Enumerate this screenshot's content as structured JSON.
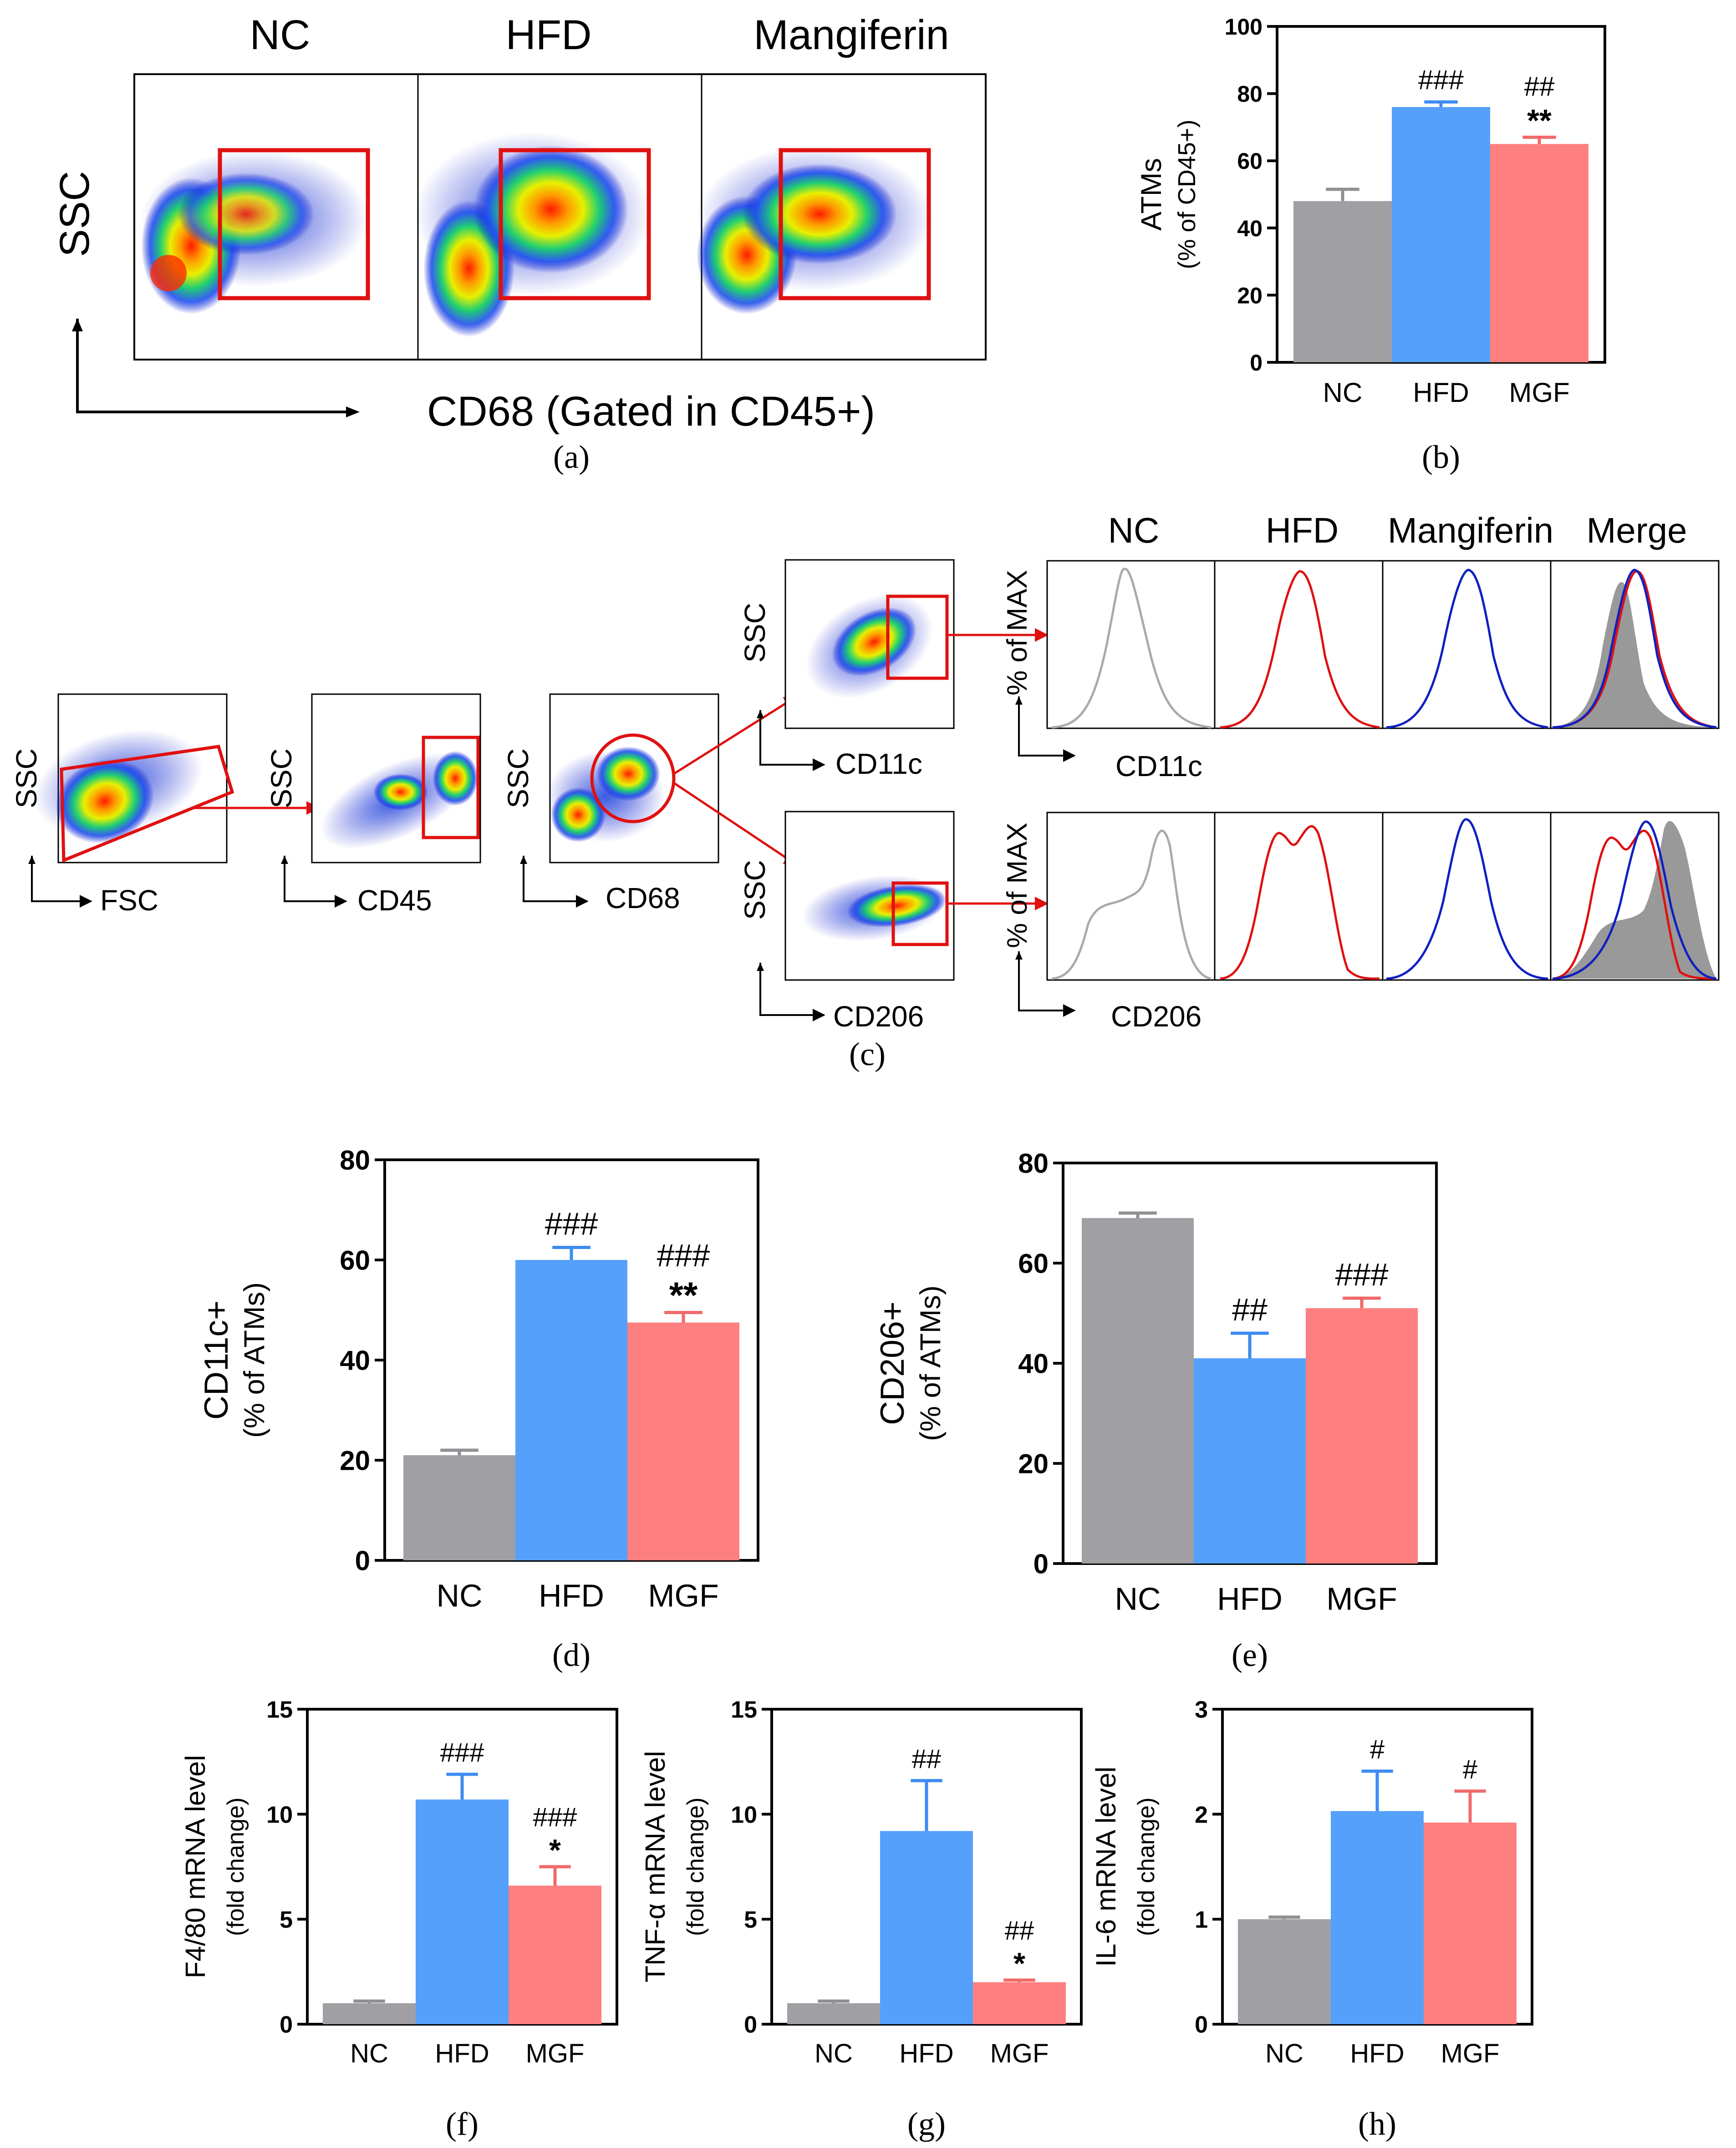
{
  "colors": {
    "nc": "#a0a0a4",
    "hfd": "#55a0fb",
    "mgf": "#fe7f7f",
    "gate": "#e01010",
    "nc_line": "#aaaaaa",
    "hfd_line": "#e01010",
    "mgf_line": "#1020c0"
  },
  "panel_a": {
    "caption": "(a)",
    "columns": [
      "NC",
      "HFD",
      "Mangiferin"
    ],
    "y_axis": "SSC",
    "x_axis": "CD68 (Gated in CD45+)"
  },
  "panel_c": {
    "caption": "(c)",
    "gating": [
      {
        "y": "SSC",
        "x": "FSC"
      },
      {
        "y": "SSC",
        "x": "CD45"
      },
      {
        "y": "SSC",
        "x": "CD68"
      }
    ],
    "sub_plots": [
      {
        "y": "SSC",
        "x": "CD11c"
      },
      {
        "y": "SSC",
        "x": "CD206"
      }
    ],
    "hist_columns": [
      "NC",
      "HFD",
      "Mangiferin",
      "Merge"
    ],
    "hist_rows": [
      {
        "y": "% of MAX",
        "x": "CD11c"
      },
      {
        "y": "% of MAX",
        "x": "CD206"
      }
    ]
  },
  "chart_data": [
    {
      "id": "b",
      "type": "bar",
      "caption": "(b)",
      "categories": [
        "NC",
        "HFD",
        "MGF"
      ],
      "values": [
        48,
        76,
        65
      ],
      "errors": [
        3.5,
        1.5,
        2
      ],
      "ylabel": [
        "ATMs",
        "(% of CD45+)"
      ],
      "ylim": [
        0,
        100
      ],
      "ticks": [
        0,
        20,
        40,
        60,
        80,
        100
      ],
      "annotations": [
        [
          ""
        ],
        [
          "###"
        ],
        [
          "##",
          "**"
        ]
      ]
    },
    {
      "id": "d",
      "type": "bar",
      "caption": "(d)",
      "categories": [
        "NC",
        "HFD",
        "MGF"
      ],
      "values": [
        21,
        60,
        47.5
      ],
      "errors": [
        1,
        2.5,
        2
      ],
      "ylabel": [
        "CD11c+",
        "(% of ATMs)"
      ],
      "ylim": [
        0,
        80
      ],
      "ticks": [
        0,
        20,
        40,
        60,
        80
      ],
      "annotations": [
        [
          ""
        ],
        [
          "###"
        ],
        [
          "###",
          "**"
        ]
      ]
    },
    {
      "id": "e",
      "type": "bar",
      "caption": "(e)",
      "categories": [
        "NC",
        "HFD",
        "MGF"
      ],
      "values": [
        69,
        41,
        51
      ],
      "errors": [
        1,
        5,
        2
      ],
      "ylabel": [
        "CD206+",
        "(% of ATMs)"
      ],
      "ylim": [
        0,
        80
      ],
      "ticks": [
        0,
        20,
        40,
        60,
        80
      ],
      "annotations": [
        [
          ""
        ],
        [
          "##"
        ],
        [
          "###"
        ]
      ]
    },
    {
      "id": "f",
      "type": "bar",
      "caption": "(f)",
      "categories": [
        "NC",
        "HFD",
        "MGF"
      ],
      "values": [
        1,
        10.7,
        6.6
      ],
      "errors": [
        0.1,
        1.2,
        0.9
      ],
      "ylabel": [
        "F4/80 mRNA level",
        "(fold change)"
      ],
      "ylim": [
        0,
        15
      ],
      "ticks": [
        0,
        5,
        10,
        15
      ],
      "annotations": [
        [
          ""
        ],
        [
          "###"
        ],
        [
          "###",
          "*"
        ]
      ]
    },
    {
      "id": "g",
      "type": "bar",
      "caption": "(g)",
      "categories": [
        "NC",
        "HFD",
        "MGF"
      ],
      "values": [
        1,
        9.2,
        2
      ],
      "errors": [
        0.1,
        2.4,
        0.1
      ],
      "ylabel": [
        "TNF-α mRNA level",
        "(fold change)"
      ],
      "ylim": [
        0,
        15
      ],
      "ticks": [
        0,
        5,
        10,
        15
      ],
      "annotations": [
        [
          ""
        ],
        [
          "##"
        ],
        [
          "##",
          "*"
        ]
      ]
    },
    {
      "id": "h",
      "type": "bar",
      "caption": "(h)",
      "categories": [
        "NC",
        "HFD",
        "MGF"
      ],
      "values": [
        1,
        2.03,
        1.92
      ],
      "errors": [
        0.02,
        0.38,
        0.3
      ],
      "ylabel": [
        "IL-6 mRNA level",
        "(fold change)"
      ],
      "ylim": [
        0,
        3
      ],
      "ticks": [
        0,
        1,
        2,
        3
      ],
      "annotations": [
        [
          ""
        ],
        [
          "#"
        ],
        [
          "#"
        ]
      ]
    }
  ]
}
